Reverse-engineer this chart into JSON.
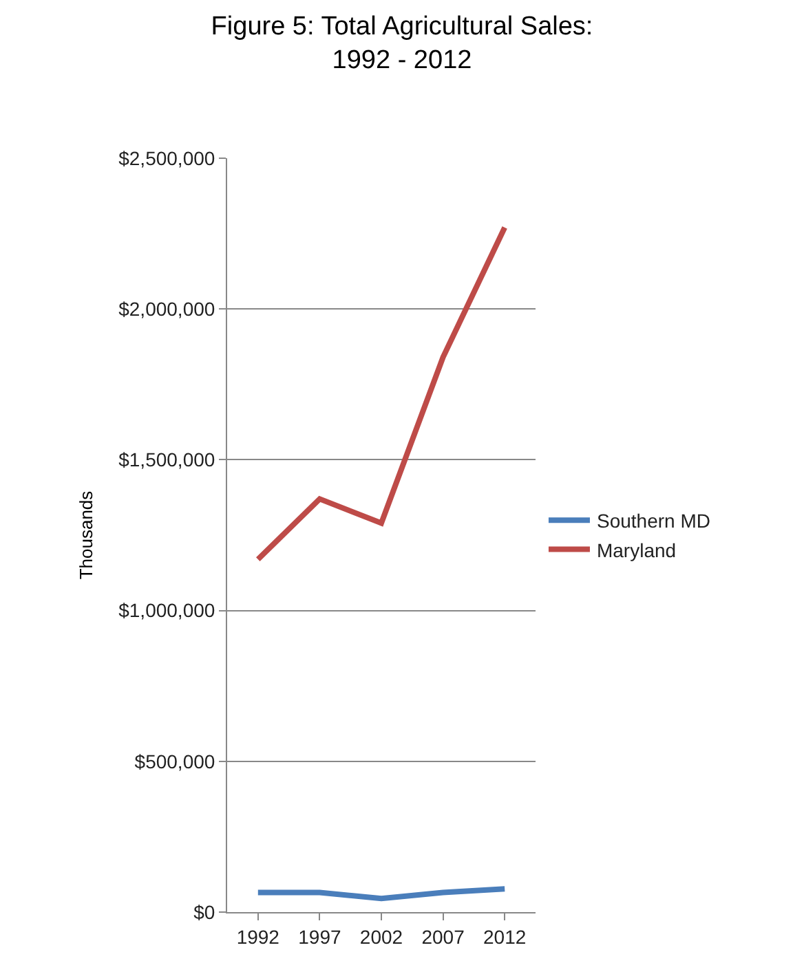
{
  "chart_data": {
    "type": "line",
    "title": "Figure 5: Total Agricultural Sales:\n1992 - 2012",
    "ylabel": "Thousands",
    "categories": [
      "1992",
      "1997",
      "2002",
      "2007",
      "2012"
    ],
    "series": [
      {
        "name": "Southern MD",
        "color": "#4a7ebb",
        "values": [
          65000,
          65000,
          45000,
          65000,
          77000
        ]
      },
      {
        "name": "Maryland",
        "color": "#be4b48",
        "values": [
          1170000,
          1370000,
          1290000,
          1840000,
          2270000
        ]
      }
    ],
    "ylim": [
      0,
      2500000
    ],
    "yticks": [
      {
        "value": 0,
        "label": "$0"
      },
      {
        "value": 500000,
        "label": "$500,000"
      },
      {
        "value": 1000000,
        "label": "$1,000,000"
      },
      {
        "value": 1500000,
        "label": "$1,500,000"
      },
      {
        "value": 2000000,
        "label": "$2,000,000"
      },
      {
        "value": 2500000,
        "label": "$2,500,000"
      }
    ],
    "grid": "y",
    "legend": "right",
    "marker": "none",
    "line_style": "solid"
  }
}
